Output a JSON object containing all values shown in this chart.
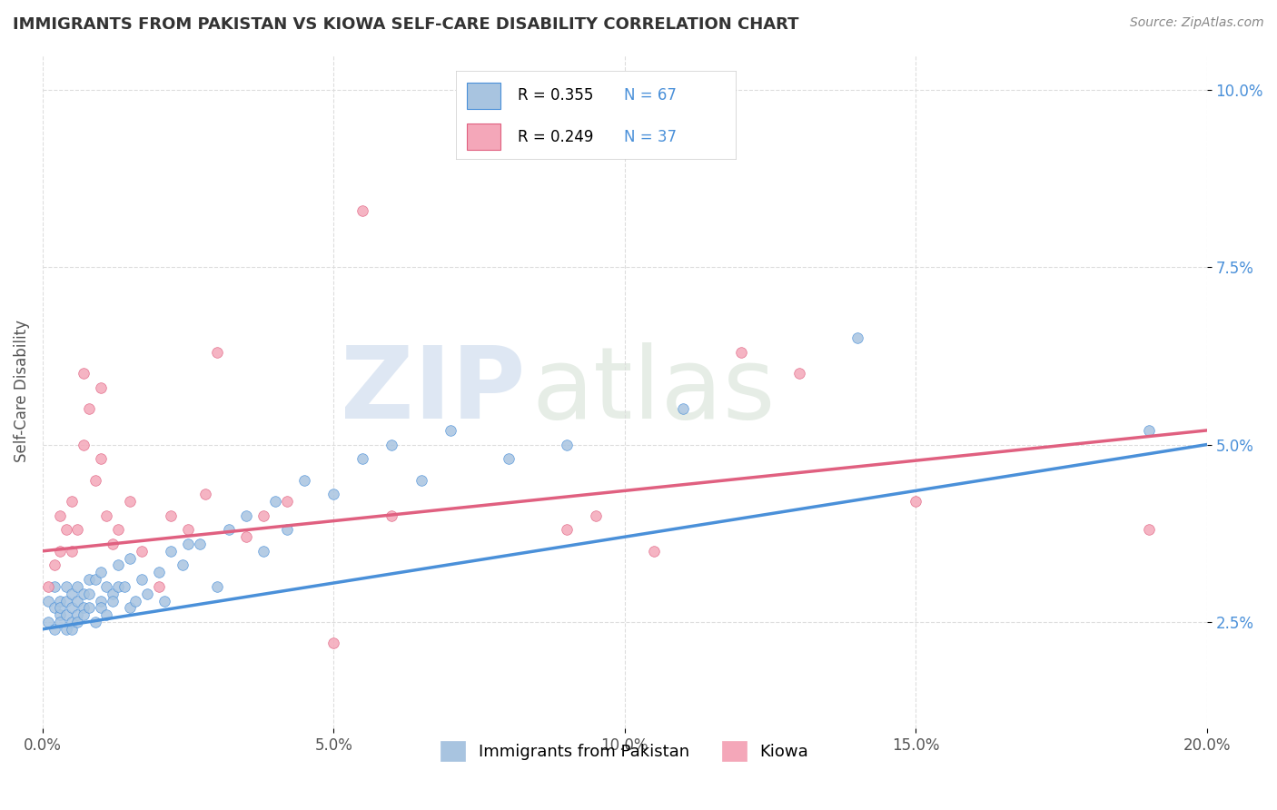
{
  "title": "IMMIGRANTS FROM PAKISTAN VS KIOWA SELF-CARE DISABILITY CORRELATION CHART",
  "source": "Source: ZipAtlas.com",
  "ylabel": "Self-Care Disability",
  "xlim": [
    0.0,
    0.2
  ],
  "ylim": [
    0.01,
    0.105
  ],
  "xticks": [
    0.0,
    0.05,
    0.1,
    0.15,
    0.2
  ],
  "xticklabels": [
    "0.0%",
    "5.0%",
    "10.0%",
    "15.0%",
    "20.0%"
  ],
  "yticks": [
    0.025,
    0.05,
    0.075,
    0.1
  ],
  "yticklabels": [
    "2.5%",
    "5.0%",
    "7.5%",
    "10.0%"
  ],
  "legend_r1": "R = 0.355",
  "legend_n1": "N = 67",
  "legend_r2": "R = 0.249",
  "legend_n2": "N = 37",
  "series1_color": "#a8c4e0",
  "series2_color": "#f4a7b9",
  "trendline1_color": "#4a90d9",
  "trendline2_color": "#e06080",
  "watermark_zip": "ZIP",
  "watermark_atlas": "atlas",
  "background_color": "#ffffff",
  "scatter1_x": [
    0.001,
    0.001,
    0.002,
    0.002,
    0.002,
    0.003,
    0.003,
    0.003,
    0.003,
    0.004,
    0.004,
    0.004,
    0.004,
    0.005,
    0.005,
    0.005,
    0.005,
    0.006,
    0.006,
    0.006,
    0.006,
    0.007,
    0.007,
    0.007,
    0.008,
    0.008,
    0.008,
    0.009,
    0.009,
    0.01,
    0.01,
    0.01,
    0.011,
    0.011,
    0.012,
    0.012,
    0.013,
    0.013,
    0.014,
    0.015,
    0.015,
    0.016,
    0.017,
    0.018,
    0.02,
    0.021,
    0.022,
    0.024,
    0.025,
    0.027,
    0.03,
    0.032,
    0.035,
    0.038,
    0.04,
    0.042,
    0.045,
    0.05,
    0.055,
    0.06,
    0.065,
    0.07,
    0.08,
    0.09,
    0.11,
    0.14,
    0.19
  ],
  "scatter1_y": [
    0.028,
    0.025,
    0.027,
    0.03,
    0.024,
    0.026,
    0.028,
    0.025,
    0.027,
    0.024,
    0.026,
    0.028,
    0.03,
    0.025,
    0.027,
    0.029,
    0.024,
    0.026,
    0.028,
    0.03,
    0.025,
    0.027,
    0.029,
    0.026,
    0.027,
    0.029,
    0.031,
    0.025,
    0.031,
    0.028,
    0.032,
    0.027,
    0.03,
    0.026,
    0.029,
    0.028,
    0.033,
    0.03,
    0.03,
    0.027,
    0.034,
    0.028,
    0.031,
    0.029,
    0.032,
    0.028,
    0.035,
    0.033,
    0.036,
    0.036,
    0.03,
    0.038,
    0.04,
    0.035,
    0.042,
    0.038,
    0.045,
    0.043,
    0.048,
    0.05,
    0.045,
    0.052,
    0.048,
    0.05,
    0.055,
    0.065,
    0.052
  ],
  "scatter2_x": [
    0.001,
    0.002,
    0.003,
    0.003,
    0.004,
    0.005,
    0.005,
    0.006,
    0.007,
    0.007,
    0.008,
    0.009,
    0.01,
    0.01,
    0.011,
    0.012,
    0.013,
    0.015,
    0.017,
    0.02,
    0.022,
    0.025,
    0.028,
    0.03,
    0.035,
    0.038,
    0.042,
    0.05,
    0.055,
    0.06,
    0.09,
    0.095,
    0.105,
    0.12,
    0.13,
    0.15,
    0.19
  ],
  "scatter2_y": [
    0.03,
    0.033,
    0.035,
    0.04,
    0.038,
    0.035,
    0.042,
    0.038,
    0.06,
    0.05,
    0.055,
    0.045,
    0.048,
    0.058,
    0.04,
    0.036,
    0.038,
    0.042,
    0.035,
    0.03,
    0.04,
    0.038,
    0.043,
    0.063,
    0.037,
    0.04,
    0.042,
    0.022,
    0.083,
    0.04,
    0.038,
    0.04,
    0.035,
    0.063,
    0.06,
    0.042,
    0.038
  ],
  "trendline1_x": [
    0.0,
    0.2
  ],
  "trendline1_y": [
    0.024,
    0.05
  ],
  "trendline2_x": [
    0.0,
    0.2
  ],
  "trendline2_y": [
    0.035,
    0.052
  ]
}
